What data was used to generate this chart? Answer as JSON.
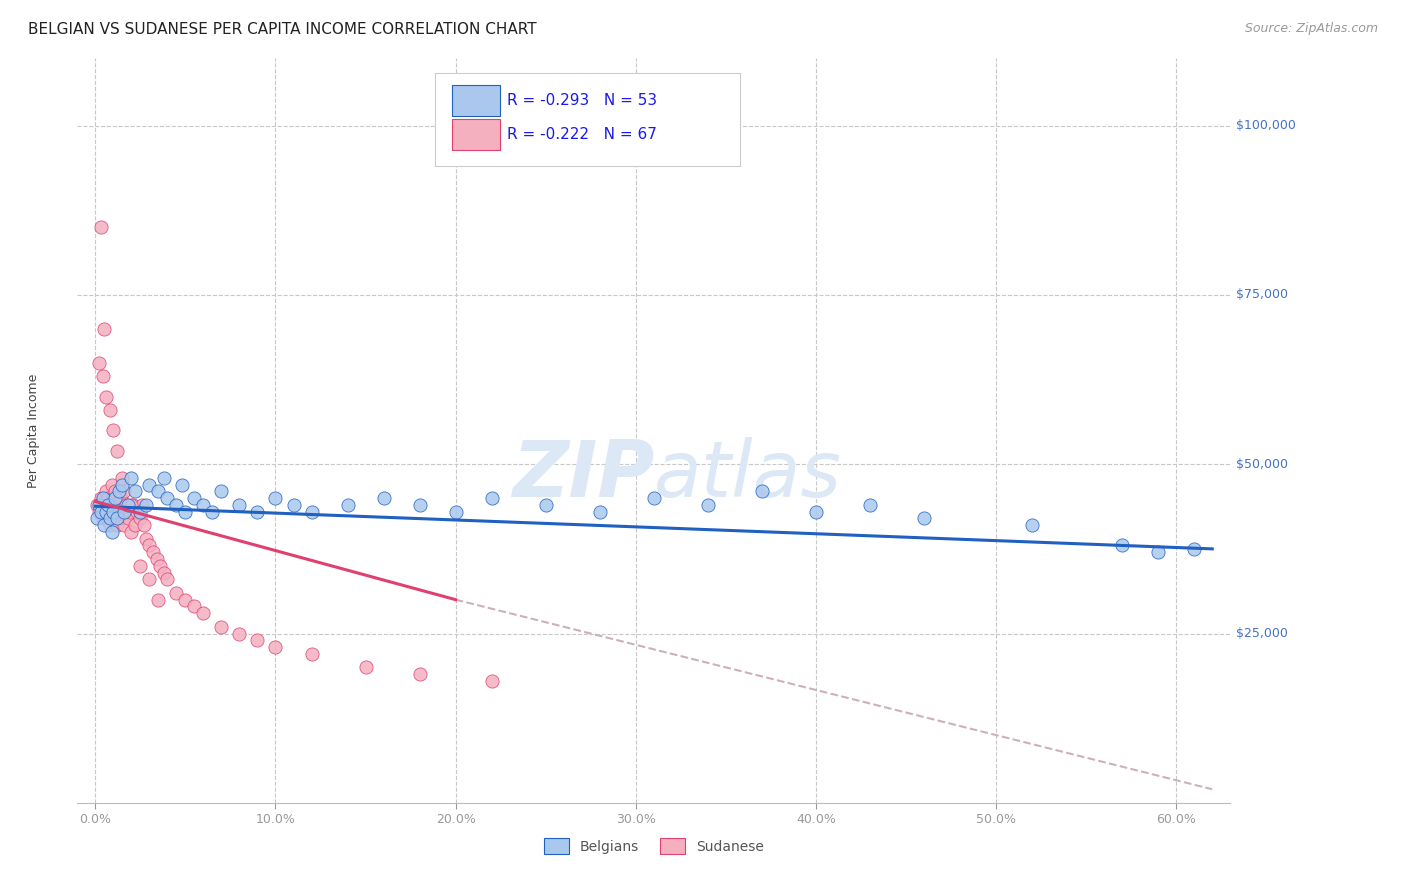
{
  "title": "BELGIAN VS SUDANESE PER CAPITA INCOME CORRELATION CHART",
  "source": "Source: ZipAtlas.com",
  "ylabel": "Per Capita Income",
  "xlabel_ticks": [
    "0.0%",
    "10.0%",
    "20.0%",
    "30.0%",
    "40.0%",
    "50.0%",
    "60.0%"
  ],
  "xlabel_vals": [
    0.0,
    0.1,
    0.2,
    0.3,
    0.4,
    0.5,
    0.6
  ],
  "ytick_labels": [
    "$25,000",
    "$50,000",
    "$75,000",
    "$100,000"
  ],
  "ytick_vals": [
    25000,
    50000,
    75000,
    100000
  ],
  "ylim": [
    0,
    110000
  ],
  "xlim": [
    -0.01,
    0.63
  ],
  "belgian_color": "#aac8ee",
  "sudanese_color": "#f5b0c0",
  "belgian_line_color": "#2060c0",
  "sudanese_line_color": "#e04070",
  "dashed_line_color": "#d0b0b8",
  "background_color": "#ffffff",
  "grid_color": "#c8c8c8",
  "legend_text_color": "#1a1aee",
  "belgian_R": "-0.293",
  "belgian_N": "53",
  "sudanese_R": "-0.222",
  "sudanese_N": "67",
  "watermark_zip": "ZIP",
  "watermark_atlas": "atlas",
  "watermark_color": "#dce8f5",
  "title_fontsize": 11,
  "source_fontsize": 9,
  "axis_label_fontsize": 9,
  "tick_fontsize": 9,
  "legend_fontsize": 11,
  "watermark_fontsize": 56,
  "belgian_scatter_x": [
    0.001,
    0.002,
    0.003,
    0.004,
    0.005,
    0.006,
    0.007,
    0.008,
    0.009,
    0.01,
    0.011,
    0.012,
    0.013,
    0.015,
    0.016,
    0.018,
    0.02,
    0.022,
    0.025,
    0.028,
    0.03,
    0.035,
    0.038,
    0.04,
    0.045,
    0.048,
    0.05,
    0.055,
    0.06,
    0.065,
    0.07,
    0.08,
    0.09,
    0.1,
    0.11,
    0.12,
    0.14,
    0.16,
    0.18,
    0.2,
    0.22,
    0.25,
    0.28,
    0.31,
    0.34,
    0.37,
    0.4,
    0.43,
    0.46,
    0.52,
    0.57,
    0.59,
    0.61
  ],
  "belgian_scatter_y": [
    42000,
    44000,
    43000,
    45000,
    41000,
    43000,
    44000,
    42000,
    40000,
    43000,
    45000,
    42000,
    46000,
    47000,
    43000,
    44000,
    48000,
    46000,
    43000,
    44000,
    47000,
    46000,
    48000,
    45000,
    44000,
    47000,
    43000,
    45000,
    44000,
    43000,
    46000,
    44000,
    43000,
    45000,
    44000,
    43000,
    44000,
    45000,
    44000,
    43000,
    45000,
    44000,
    43000,
    45000,
    44000,
    46000,
    43000,
    44000,
    42000,
    41000,
    38000,
    37000,
    37500
  ],
  "sudanese_scatter_x": [
    0.001,
    0.002,
    0.003,
    0.004,
    0.005,
    0.006,
    0.006,
    0.007,
    0.007,
    0.008,
    0.008,
    0.009,
    0.009,
    0.01,
    0.01,
    0.011,
    0.011,
    0.012,
    0.012,
    0.013,
    0.013,
    0.014,
    0.015,
    0.016,
    0.016,
    0.017,
    0.018,
    0.019,
    0.02,
    0.021,
    0.022,
    0.023,
    0.025,
    0.026,
    0.027,
    0.028,
    0.03,
    0.032,
    0.034,
    0.036,
    0.038,
    0.04,
    0.045,
    0.05,
    0.055,
    0.06,
    0.07,
    0.08,
    0.09,
    0.1,
    0.12,
    0.15,
    0.18,
    0.22,
    0.003,
    0.005,
    0.002,
    0.004,
    0.006,
    0.008,
    0.01,
    0.012,
    0.015,
    0.02,
    0.025,
    0.03,
    0.035
  ],
  "sudanese_scatter_y": [
    44000,
    43000,
    45000,
    42000,
    44000,
    46000,
    43000,
    45000,
    42000,
    44000,
    41000,
    43000,
    47000,
    45000,
    42000,
    44000,
    46000,
    43000,
    41000,
    44000,
    42000,
    45000,
    43000,
    41000,
    46000,
    44000,
    42000,
    43000,
    40000,
    44000,
    41000,
    43000,
    42000,
    44000,
    41000,
    39000,
    38000,
    37000,
    36000,
    35000,
    34000,
    33000,
    31000,
    30000,
    29000,
    28000,
    26000,
    25000,
    24000,
    23000,
    22000,
    20000,
    19000,
    18000,
    85000,
    70000,
    65000,
    63000,
    60000,
    58000,
    55000,
    52000,
    48000,
    44000,
    35000,
    33000,
    30000
  ]
}
